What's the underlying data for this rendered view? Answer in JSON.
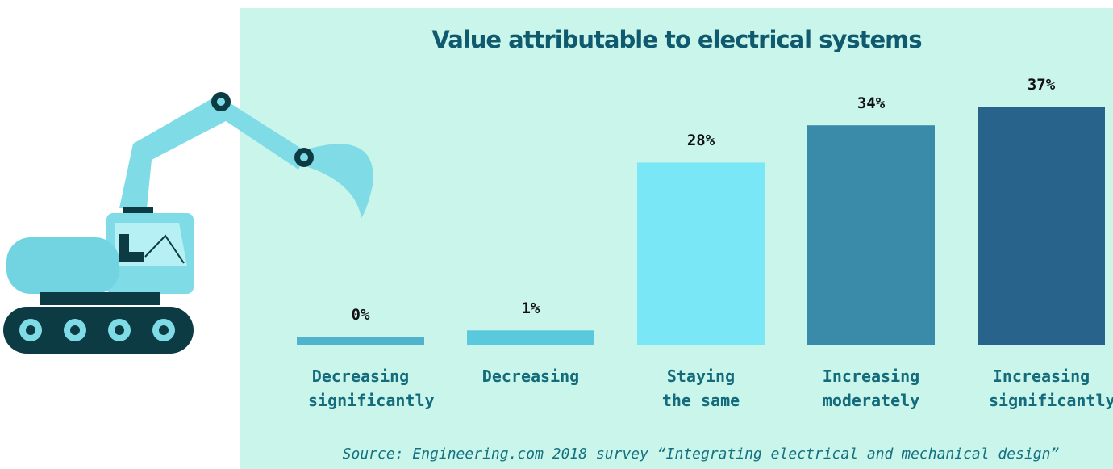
{
  "chart_data": {
    "type": "bar",
    "title": "Value attributable to electrical systems",
    "categories": [
      "Decreasing significantly",
      "Decreasing",
      "Staying the same",
      "Increasing moderately",
      "Increasing significantly"
    ],
    "values": [
      0,
      1,
      28,
      34,
      37
    ],
    "value_labels": [
      "0%",
      "1%",
      "28%",
      "34%",
      "37%"
    ],
    "colors": [
      "#4fb3cd",
      "#5bc9dd",
      "#7ae7f6",
      "#3a8aa9",
      "#27638a"
    ],
    "source": "Source: Engineering.com 2018 survey “Integrating electrical and mechanical design”"
  }
}
